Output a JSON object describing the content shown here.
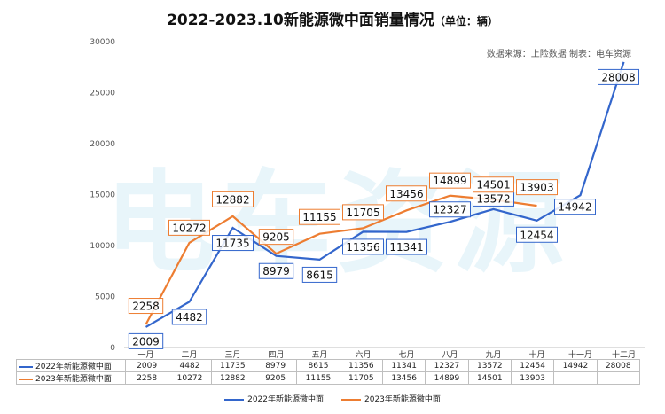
{
  "header": {
    "title": "2022-2023.10新能源微中面销量情况",
    "unit": "（单位：辆）",
    "source": "数据来源：上险数据  制表：电车资源"
  },
  "watermark": "电车资源",
  "chart_data": {
    "type": "line",
    "categories": [
      "一月",
      "二月",
      "三月",
      "四月",
      "五月",
      "六月",
      "七月",
      "八月",
      "九月",
      "十月",
      "十一月",
      "十二月"
    ],
    "ylim": [
      0,
      30000
    ],
    "yticks": [
      0,
      5000,
      10000,
      15000,
      20000,
      25000,
      30000
    ],
    "grid": false,
    "legend_position": "bottom",
    "series": [
      {
        "name": "2022年新能源微中面",
        "color": "#3366cc",
        "values": [
          2009,
          4482,
          11735,
          8979,
          8615,
          11356,
          11341,
          12327,
          13572,
          12454,
          14942,
          28008
        ]
      },
      {
        "name": "2023年新能源微中面",
        "color": "#ed7d31",
        "values": [
          2258,
          10272,
          12882,
          9205,
          11155,
          11705,
          13456,
          14899,
          14501,
          13903,
          null,
          null
        ]
      }
    ]
  }
}
